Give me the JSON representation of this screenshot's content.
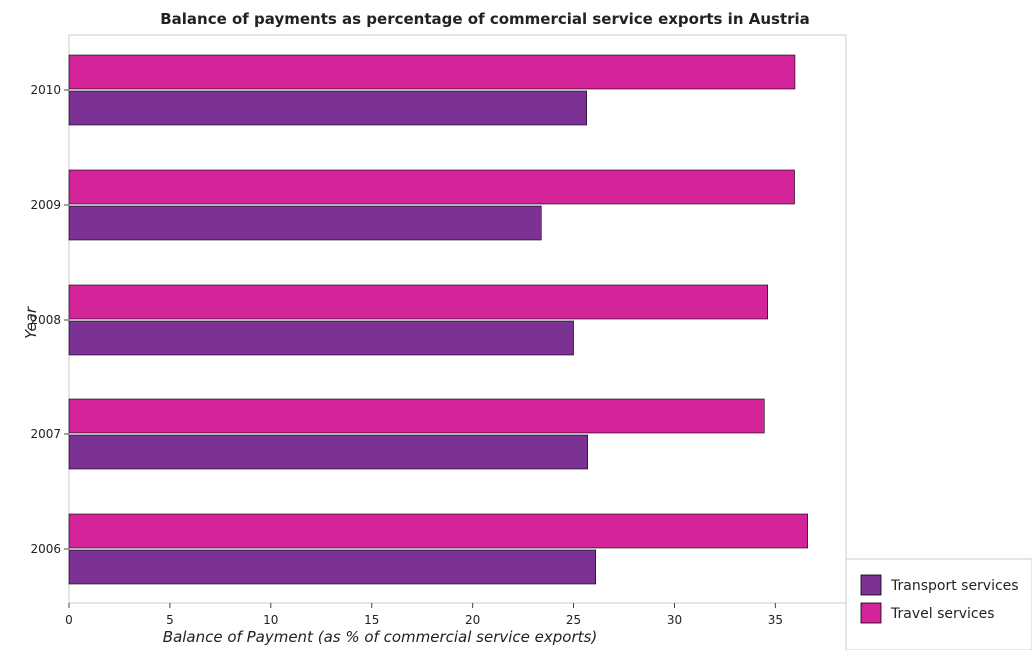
{
  "chart_data": {
    "type": "bar",
    "orientation": "horizontal",
    "title": "Balance of payments as percentage of commercial service exports in Austria",
    "xlabel": "Balance of Payment (as % of commercial service exports)",
    "ylabel": "Year",
    "categories": [
      "2006",
      "2007",
      "2008",
      "2009",
      "2010"
    ],
    "series": [
      {
        "name": "Transport services",
        "values": [
          26.1,
          25.7,
          25.0,
          23.4,
          25.65
        ],
        "color": "#7b3294"
      },
      {
        "name": "Travel services",
        "values": [
          36.6,
          34.45,
          34.62,
          35.95,
          35.97
        ],
        "color": "#d4249a"
      }
    ],
    "xlim": [
      0,
      38.5
    ],
    "xticks": [
      0,
      5,
      10,
      15,
      20,
      25,
      30,
      35
    ],
    "grid": false,
    "legend_position": "bottom-right"
  }
}
